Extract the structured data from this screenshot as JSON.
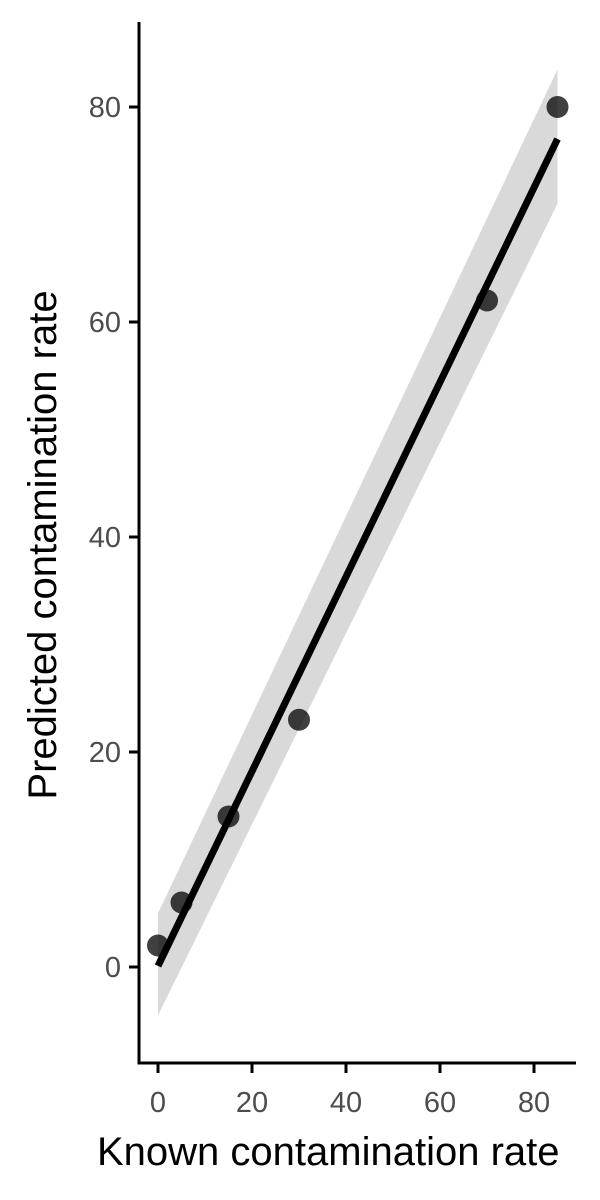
{
  "chart_data": {
    "type": "scatter",
    "xlabel": "Known contamination rate",
    "ylabel": "Predicted contamination rate",
    "xlim": [
      -4,
      89
    ],
    "ylim": [
      -9,
      88
    ],
    "xticks": [
      0,
      20,
      40,
      60,
      80
    ],
    "yticks": [
      0,
      20,
      40,
      60,
      80
    ],
    "grid": false,
    "legend": "none",
    "points": [
      {
        "x": 0,
        "y": 2
      },
      {
        "x": 5,
        "y": 6
      },
      {
        "x": 15,
        "y": 14
      },
      {
        "x": 30,
        "y": 23
      },
      {
        "x": 70,
        "y": 62
      },
      {
        "x": 85,
        "y": 80
      }
    ],
    "fit": {
      "type": "linear",
      "x_range": [
        0,
        85
      ],
      "intercept": 0.1,
      "slope": 0.905,
      "confidence_band": [
        {
          "x": 0,
          "lower": -4.5,
          "upper": 5.0
        },
        {
          "x": 85,
          "lower": 71.0,
          "upper": 83.5
        }
      ]
    },
    "colors": {
      "points": "#000000",
      "fit_line": "#000000",
      "band": "#d9d9d9",
      "axis": "#000000",
      "tick_label": "#4d4d4d"
    }
  }
}
